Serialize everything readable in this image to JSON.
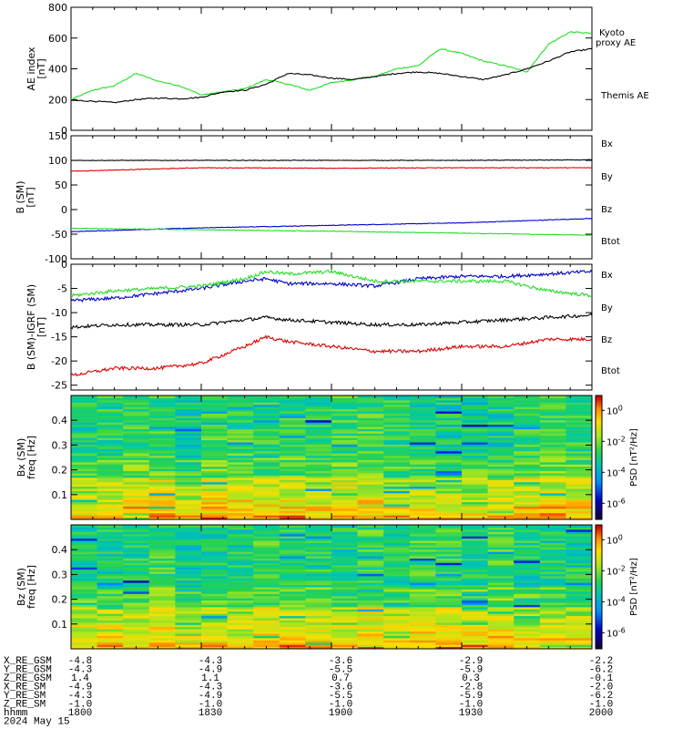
{
  "colors": {
    "black": "#000000",
    "blue": "#0000cc",
    "green": "#22dd22",
    "red": "#dd0000",
    "frame": "#000000"
  },
  "x_time_ticks": [
    "1800",
    "1830",
    "1900",
    "1930",
    "2000"
  ],
  "chart_data": [
    {
      "type": "line",
      "panel": "ae-index",
      "title": "",
      "ylabel_line1": "AE index",
      "ylabel_line2": "[nT]",
      "ylim": [
        0,
        800
      ],
      "yticks": [
        0,
        200,
        400,
        600,
        800
      ],
      "x": [
        0,
        5,
        10,
        15,
        20,
        25,
        30,
        35,
        40,
        45,
        50,
        55,
        60,
        65,
        70,
        75,
        80,
        85,
        90,
        95,
        100,
        105,
        110,
        115,
        120
      ],
      "series": [
        {
          "name": "Kyoto proxy AE",
          "label_line1": "Kyoto",
          "label_line2": "proxy AE",
          "color": "#22dd22",
          "values": [
            200,
            260,
            290,
            370,
            320,
            290,
            230,
            250,
            270,
            330,
            300,
            260,
            310,
            330,
            350,
            400,
            420,
            530,
            500,
            450,
            420,
            380,
            560,
            640,
            630
          ]
        },
        {
          "name": "Themis AE",
          "label_line1": "Themis AE",
          "label_line2": "",
          "color": "#000000",
          "values": [
            195,
            190,
            180,
            200,
            210,
            205,
            215,
            250,
            260,
            300,
            370,
            360,
            340,
            330,
            350,
            370,
            380,
            370,
            350,
            330,
            360,
            400,
            450,
            510,
            530
          ]
        }
      ]
    },
    {
      "type": "line",
      "panel": "b-sm",
      "ylabel_line1": "B (SM)",
      "ylabel_line2": "[nT]",
      "ylim": [
        -100,
        150
      ],
      "yticks": [
        -100,
        -50,
        0,
        50,
        100,
        150
      ],
      "x": [
        0,
        30,
        60,
        90,
        120
      ],
      "series": [
        {
          "name": "Bx",
          "color": "#0000cc",
          "values": [
            -45,
            -37,
            -32,
            -27,
            -18
          ]
        },
        {
          "name": "By",
          "color": "#22dd22",
          "values": [
            -38,
            -41,
            -44,
            -48,
            -52
          ]
        },
        {
          "name": "Bz",
          "color": "#dd0000",
          "values": [
            78,
            85,
            84,
            85,
            85
          ]
        },
        {
          "name": "Btot",
          "color": "#000000",
          "values": [
            100,
            100,
            100,
            100,
            101
          ]
        }
      ]
    },
    {
      "type": "line",
      "panel": "b-minus-igrf",
      "ylabel_line1": "B (SM)-IGRF (SM)",
      "ylabel_line2": "[nT]",
      "ylim": [
        -26,
        0
      ],
      "yticks": [
        -25,
        -20,
        -15,
        -10,
        -5,
        0
      ],
      "x": [
        0,
        10,
        20,
        30,
        40,
        45,
        50,
        60,
        70,
        80,
        90,
        100,
        110,
        120
      ],
      "series": [
        {
          "name": "Bx",
          "color": "#0000cc",
          "values": [
            -7.5,
            -7,
            -6,
            -5,
            -3.5,
            -3,
            -4,
            -4,
            -4.5,
            -3,
            -2.5,
            -2.5,
            -2,
            -1.5
          ]
        },
        {
          "name": "By",
          "color": "#22dd22",
          "values": [
            -6.5,
            -5.5,
            -5,
            -4.5,
            -3,
            -1.5,
            -2,
            -1.5,
            -3.5,
            -3.5,
            -3.5,
            -3.5,
            -5.5,
            -6.5
          ]
        },
        {
          "name": "Bz",
          "color": "#dd0000",
          "values": [
            -23,
            -21.5,
            -21.5,
            -20.5,
            -17,
            -15,
            -16,
            -17,
            -18,
            -18,
            -17,
            -17,
            -15.5,
            -15.5
          ]
        },
        {
          "name": "Btot",
          "color": "#000000",
          "values": [
            -13,
            -12.5,
            -12.5,
            -12.5,
            -11.5,
            -11,
            -11.5,
            -12,
            -12.5,
            -12.5,
            -12,
            -11.5,
            -11,
            -10.5
          ]
        }
      ]
    },
    {
      "type": "heatmap",
      "panel": "bx-spectrogram",
      "ylabel_line1": "Bx (SM)",
      "ylabel_line2": "freq  [Hz]",
      "ylim": [
        0,
        0.5
      ],
      "yticks": [
        "0.1",
        "0.2",
        "0.3",
        "0.4"
      ],
      "colorbar_label": "PSD [nT^2/Hz]",
      "colorbar_ticks": [
        "10^0",
        "10^-2",
        "10^-4",
        "10^-6"
      ]
    },
    {
      "type": "heatmap",
      "panel": "bz-spectrogram",
      "ylabel_line1": "Bz (SM)",
      "ylabel_line2": "freq  [Hz]",
      "ylim": [
        0,
        0.5
      ],
      "yticks": [
        "0.1",
        "0.2",
        "0.3",
        "0.4"
      ],
      "colorbar_label": "PSD [nT^2/Hz]",
      "colorbar_ticks": [
        "10^0",
        "10^-2",
        "10^-4",
        "10^-6"
      ]
    }
  ],
  "footer": {
    "rows": [
      {
        "label": "X_RE_GSM",
        "values": [
          "-4.8",
          "-4.3",
          "-3.6",
          "-2.9",
          "-2.2"
        ]
      },
      {
        "label": "Y_RE_GSM",
        "values": [
          "-4.3",
          "-4.9",
          "-5.5",
          "-5.9",
          "-6.2"
        ]
      },
      {
        "label": "Z_RE_GSM",
        "values": [
          "1.4",
          "1.1",
          "0.7",
          "0.3",
          "-0.1"
        ]
      },
      {
        "label": "X_RE_SM",
        "values": [
          "-4.9",
          "-4.3",
          "-3.6",
          "-2.8",
          "-2.0"
        ]
      },
      {
        "label": "Y_RE_SM",
        "values": [
          "-4.3",
          "-4.9",
          "-5.5",
          "-5.9",
          "-6.2"
        ]
      },
      {
        "label": "Z_RE_SM",
        "values": [
          "-1.0",
          "-1.0",
          "-1.0",
          "-1.0",
          "-1.0"
        ]
      },
      {
        "label": "hhmm",
        "values": [
          "1800",
          "1830",
          "1900",
          "1930",
          "2000"
        ]
      }
    ],
    "date": "2024 May 15"
  }
}
